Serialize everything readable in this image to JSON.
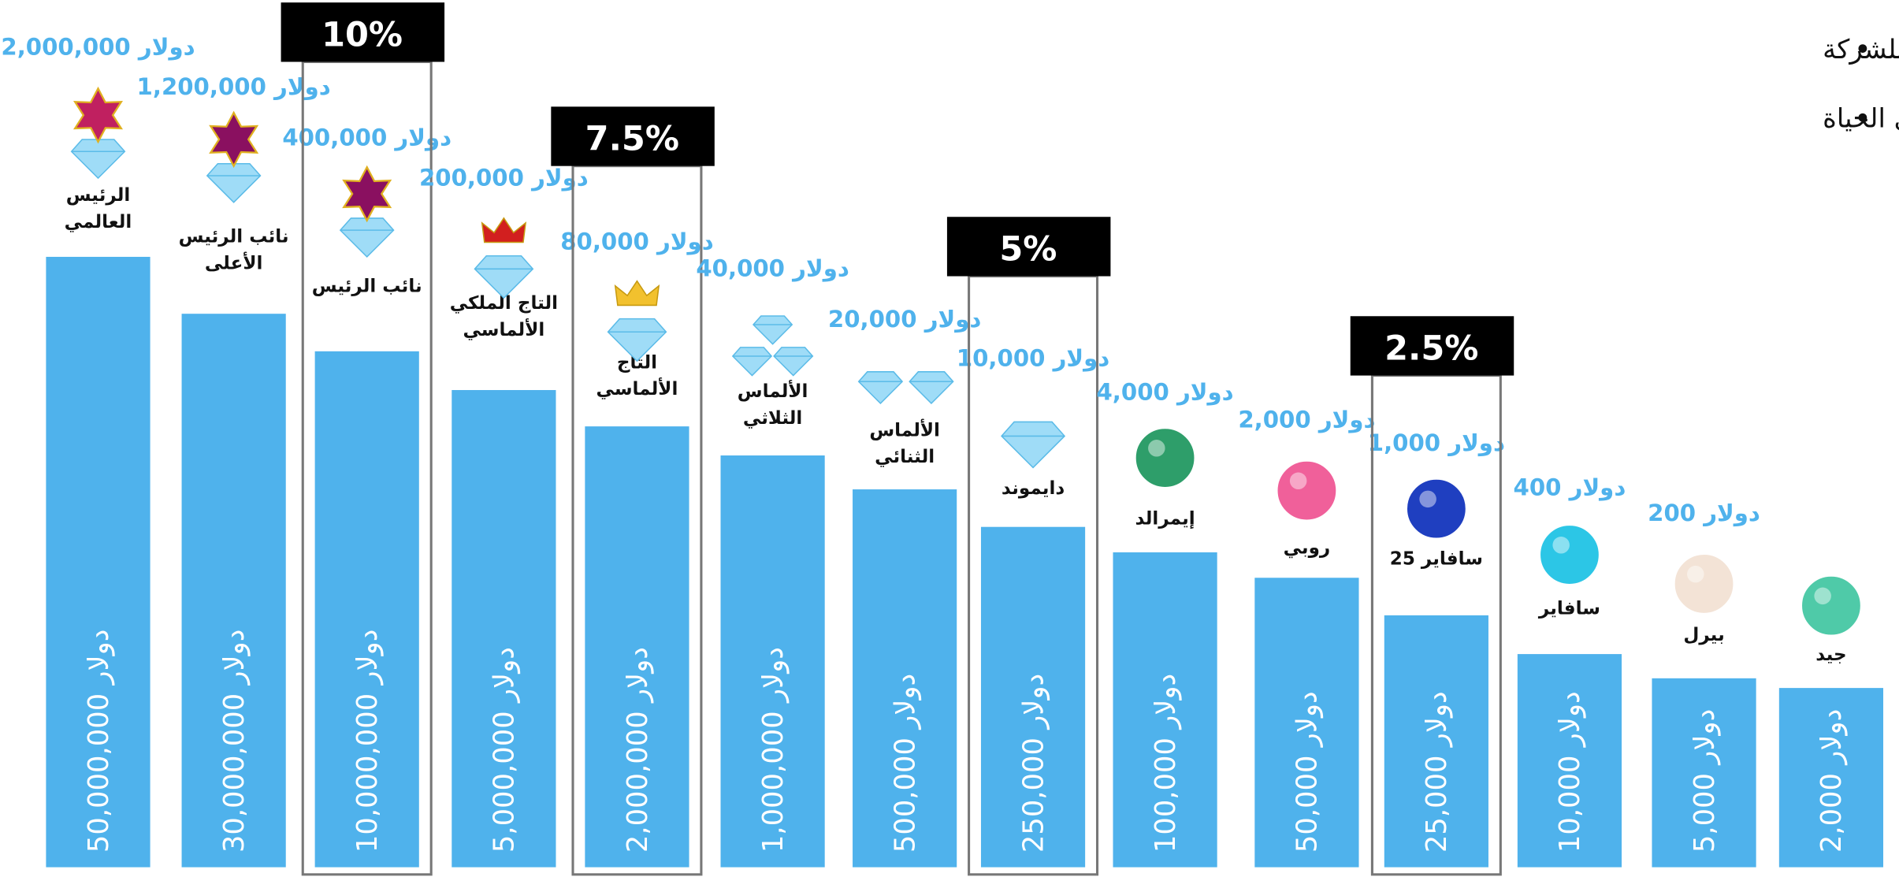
{
  "bullets": [
    "اكسب من الإيرادات العالمية للشركة",
    "اكسب مدى الحياة"
  ],
  "tiers": [
    {
      "rank": [
        "الرئيس",
        "العالمي"
      ],
      "reward": "2,000,000 دولار",
      "volume": "دولار 50,000,000"
    },
    {
      "rank": [
        "نائب الرئيس",
        "الأعلى"
      ],
      "reward": "دولار 1,200,000",
      "volume": "دولار 30,000,000"
    },
    {
      "rank": [
        "نائب الرئيس"
      ],
      "reward": "دولار 400,000",
      "volume": "دولار 10,000,000",
      "percent": "10%"
    },
    {
      "rank": [
        "التاج الملكي",
        "الألماسي"
      ],
      "reward": "دولار 200,000",
      "volume": "دولار 5,000,000"
    },
    {
      "rank": [
        "التاج",
        "الألماسي"
      ],
      "reward": "دولار 80,000",
      "volume": "دولار 2,000,000",
      "percent": "7.5%"
    },
    {
      "rank": [
        "الألماس",
        "الثلاثي"
      ],
      "reward": "دولار 40,000",
      "volume": "دولار 1,000,000"
    },
    {
      "rank": [
        "الألماس",
        "الثنائي"
      ],
      "reward": "دولار 20,000",
      "volume": "دولار 500,000"
    },
    {
      "rank": [
        "دايموند"
      ],
      "reward": "دولار 10,000",
      "volume": "دولار 250,000",
      "percent": "5%"
    },
    {
      "rank": [
        "إيمرالد"
      ],
      "reward": "دولار 4,000",
      "volume": "دولار 100,000"
    },
    {
      "rank": [
        "روبي"
      ],
      "reward": "دولار 2,000",
      "volume": "دولار 50,000"
    },
    {
      "rank": [
        "سافاير 25"
      ],
      "reward": "دولار 1,000",
      "volume": "دولار 25,000",
      "percent": "2.5%"
    },
    {
      "rank": [
        "سافاير"
      ],
      "reward": "دولار 400",
      "volume": "دولار 10,000"
    },
    {
      "rank": [
        "بيرل"
      ],
      "reward": "دولار 200",
      "volume": "دولار 5,000"
    },
    {
      "rank": [
        "جيد"
      ],
      "volume": "دولار 2,000"
    }
  ]
}
